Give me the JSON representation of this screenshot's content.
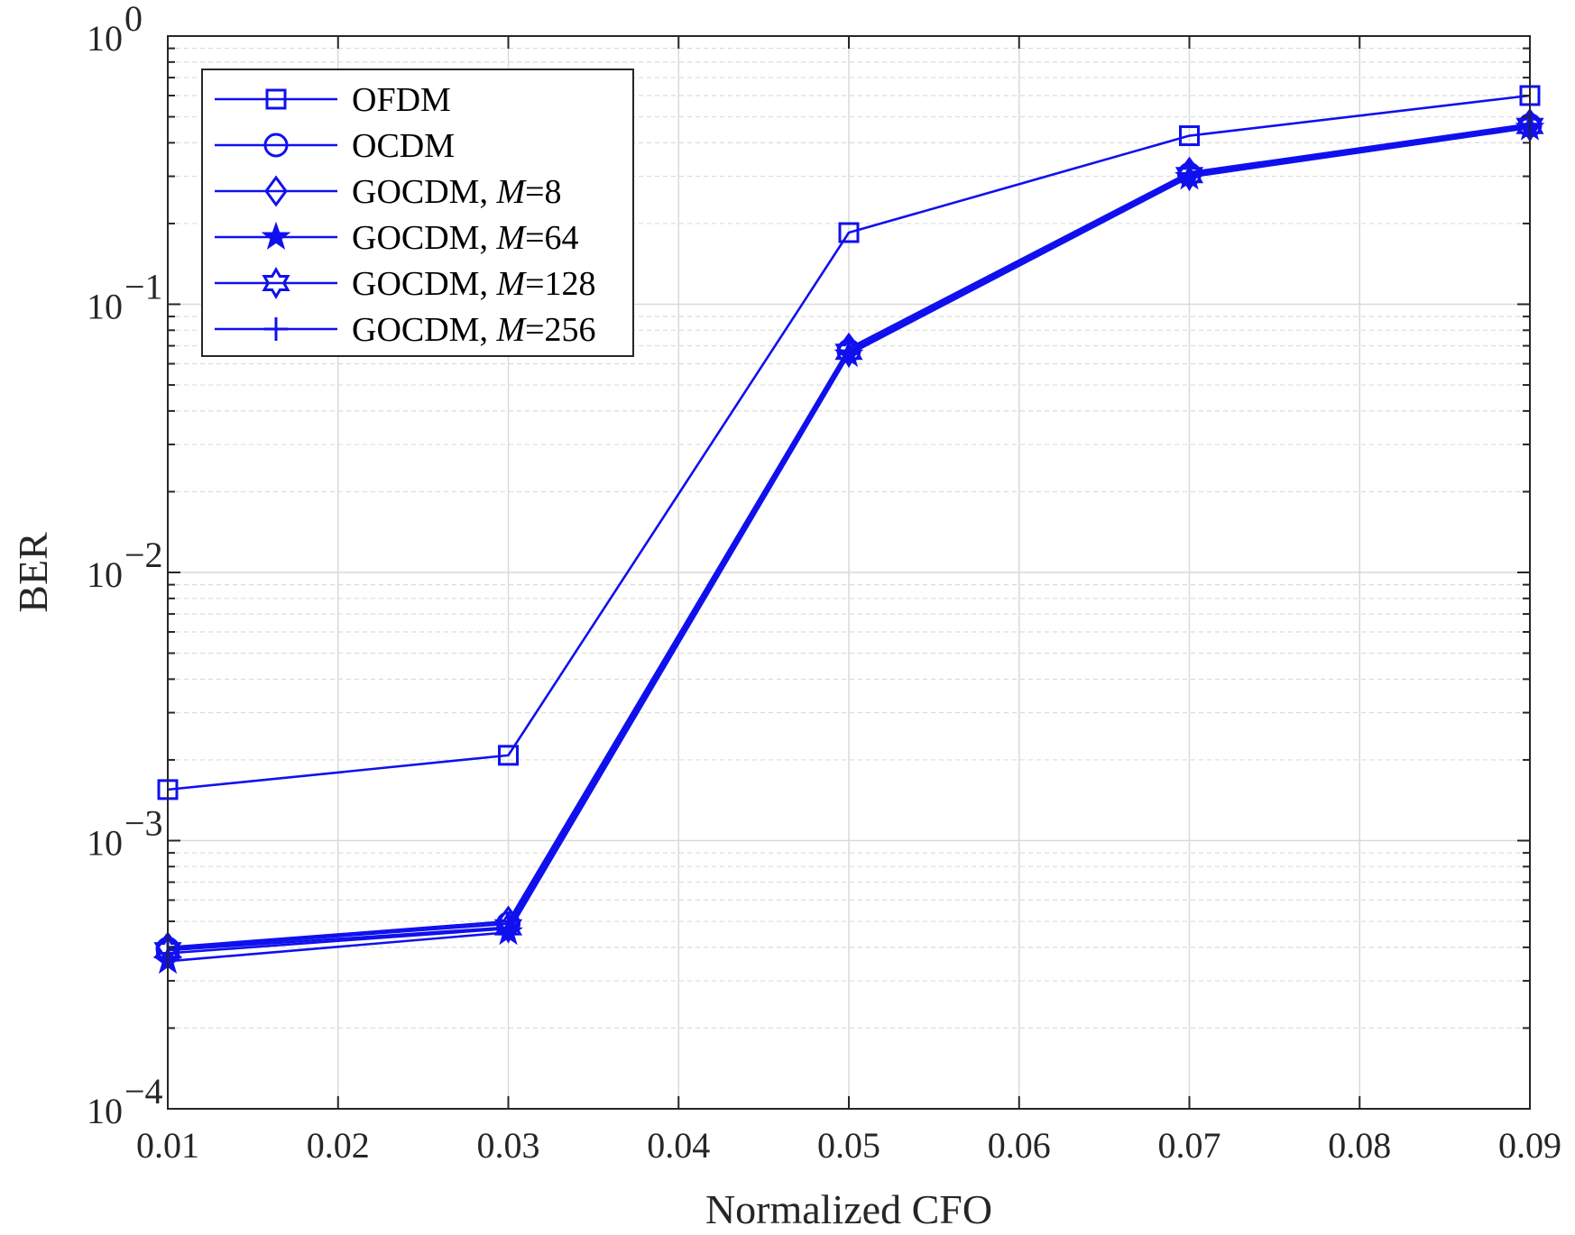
{
  "chart_data": {
    "type": "line",
    "xlabel": "Normalized CFO",
    "ylabel": "BER",
    "x": [
      0.01,
      0.03,
      0.05,
      0.07,
      0.09
    ],
    "xlim": [
      0.01,
      0.09
    ],
    "xticks": [
      0.01,
      0.02,
      0.03,
      0.04,
      0.05,
      0.06,
      0.07,
      0.08,
      0.09
    ],
    "xtick_labels": [
      "0.01",
      "0.02",
      "0.03",
      "0.04",
      "0.05",
      "0.06",
      "0.07",
      "0.08",
      "0.09"
    ],
    "yscale": "log",
    "ylim": [
      0.0001,
      1
    ],
    "yticks": [
      0.0001,
      0.001,
      0.01,
      0.1,
      1
    ],
    "ytick_labels": [
      {
        "base": "10",
        "exp": "−4"
      },
      {
        "base": "10",
        "exp": "−3"
      },
      {
        "base": "10",
        "exp": "−2"
      },
      {
        "base": "10",
        "exp": "−1"
      },
      {
        "base": "10",
        "exp": "0"
      }
    ],
    "grid": true,
    "legend_position": "top-left",
    "line_color": "#1010ee",
    "series": [
      {
        "name": "OFDM",
        "marker": "square",
        "values": [
          0.00155,
          0.00208,
          0.185,
          0.425,
          0.6
        ]
      },
      {
        "name": "OCDM",
        "marker": "circle",
        "values": [
          0.000395,
          0.00049,
          0.067,
          0.305,
          0.465
        ]
      },
      {
        "name": "GOCDM, M=8",
        "name_prefix": "GOCDM, ",
        "name_var": "M",
        "name_suffix": "=8",
        "marker": "diamond",
        "values": [
          0.0004,
          0.0005,
          0.0685,
          0.31,
          0.47
        ]
      },
      {
        "name": "GOCDM, M=64",
        "name_prefix": "GOCDM, ",
        "name_var": "M",
        "name_suffix": "=64",
        "marker": "star",
        "values": [
          0.000355,
          0.000455,
          0.065,
          0.298,
          0.455
        ]
      },
      {
        "name": "GOCDM, M=128",
        "name_prefix": "GOCDM, ",
        "name_var": "M",
        "name_suffix": "=128",
        "marker": "hexagram",
        "values": [
          0.00039,
          0.000475,
          0.0665,
          0.303,
          0.462
        ]
      },
      {
        "name": "GOCDM, M=256",
        "name_prefix": "GOCDM, ",
        "name_var": "M",
        "name_suffix": "=256",
        "marker": "plus",
        "values": [
          0.00038,
          0.00047,
          0.066,
          0.302,
          0.46
        ]
      }
    ]
  }
}
